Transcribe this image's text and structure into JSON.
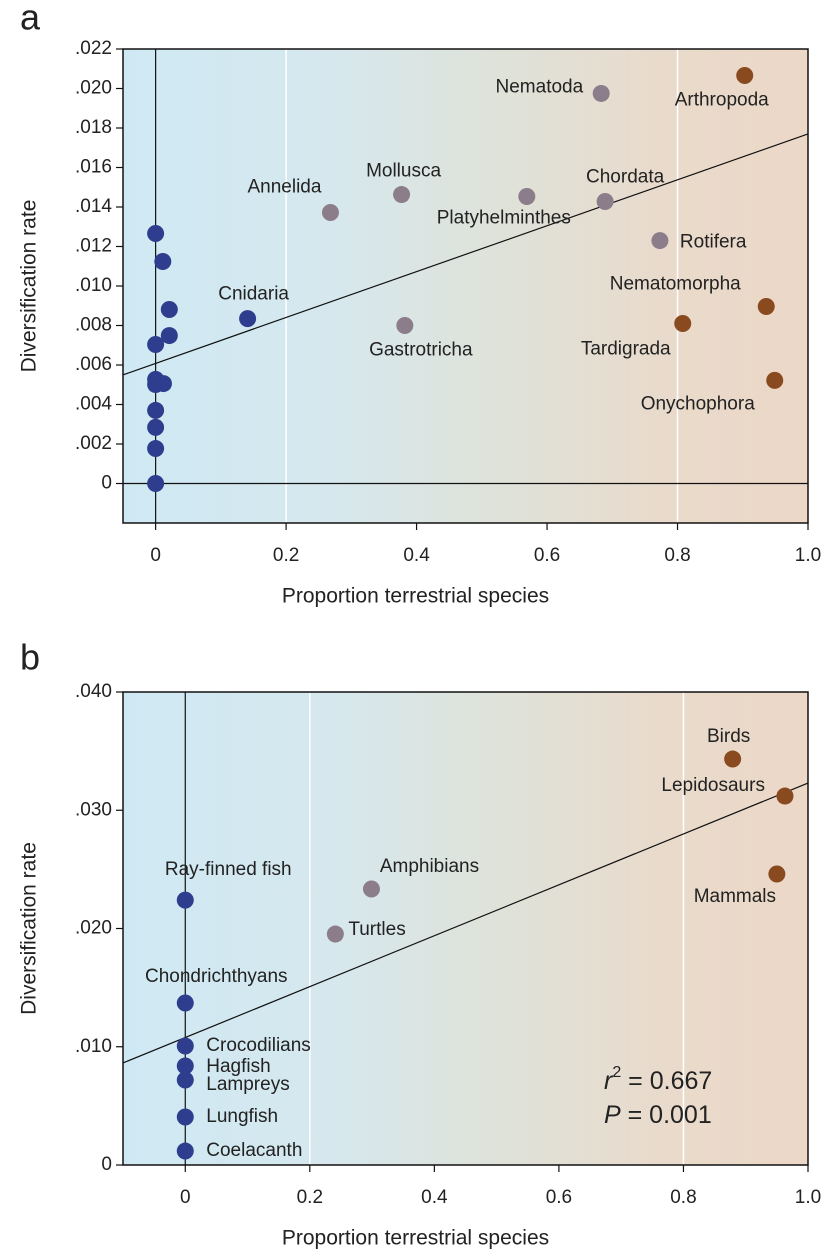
{
  "chart_data": [
    {
      "type": "scatter",
      "panel_label": "a",
      "x_label": "Proportion terrestrial species",
      "y_label": "Diversification rate",
      "xlim": [
        -0.05,
        1.0
      ],
      "ylim": [
        -0.002,
        0.022
      ],
      "xticks": [
        0,
        0.2,
        0.4,
        0.6,
        0.8,
        {
          "value": 1.0,
          "label": "1.0"
        }
      ],
      "yticks": [
        0,
        {
          "value": 0.002,
          "label": ".002"
        },
        {
          "value": 0.004,
          "label": ".004"
        },
        {
          "value": 0.006,
          "label": ".006"
        },
        {
          "value": 0.008,
          "label": ".008"
        },
        {
          "value": 0.01,
          "label": ".010"
        },
        {
          "value": 0.012,
          "label": ".012"
        },
        {
          "value": 0.014,
          "label": ".014"
        },
        {
          "value": 0.016,
          "label": ".016"
        },
        {
          "value": 0.018,
          "label": ".018"
        },
        {
          "value": 0.02,
          "label": ".020"
        },
        {
          "value": 0.022,
          "label": ".022"
        }
      ],
      "guide_lines": [
        0.2,
        0.8
      ],
      "series": [
        {
          "color": "#2f3d8e",
          "x": [
            0,
            0.011,
            0.021,
            0.021,
            0,
            0,
            0,
            0.012,
            0,
            0,
            0,
            0,
            0.141
          ],
          "values": [
            0.01266,
            0.01124,
            0.00881,
            0.00749,
            0.00704,
            0.00527,
            0.00501,
            0.00506,
            0.0037,
            0.00284,
            0.00177,
            0,
            0.00835
          ],
          "labels": [
            null,
            null,
            null,
            null,
            null,
            null,
            null,
            null,
            null,
            null,
            null,
            null,
            "Cnidaria"
          ]
        },
        {
          "color": "#8c7d8a",
          "x": [
            0.268,
            0.377,
            0.569,
            0.689,
            0.683,
            0.773,
            0.382
          ],
          "values": [
            0.01372,
            0.01463,
            0.01453,
            0.01428,
            0.01975,
            0.0123,
            0.008
          ],
          "labels": [
            "Annelida",
            "Mollusca",
            "Platyhelminthes",
            "Chordata",
            "Nematoda",
            "Rotifera",
            "Gastrotricha"
          ]
        },
        {
          "color": "#8a4a1f",
          "x": [
            0.903,
            0.936,
            0.808,
            0.949
          ],
          "values": [
            0.02066,
            0.00896,
            0.0081,
            0.00522
          ],
          "labels": [
            "Arthropoda",
            "Nematomorpha",
            "Tardigrada",
            "Onychophora"
          ]
        }
      ],
      "trendline": {
        "x": [
          -0.05,
          1.0
        ],
        "y": [
          0.0055,
          0.0177
        ]
      }
    },
    {
      "type": "scatter",
      "panel_label": "b",
      "x_label": "Proportion terrestrial species",
      "y_label": "Diversification rate",
      "xlim": [
        -0.1,
        1.0
      ],
      "ylim": [
        0,
        0.04
      ],
      "xticks": [
        0,
        0.2,
        0.4,
        0.6,
        0.8,
        {
          "value": 1.0,
          "label": "1.0"
        }
      ],
      "yticks": [
        0,
        {
          "value": 0.01,
          "label": ".010"
        },
        {
          "value": 0.02,
          "label": ".020"
        },
        {
          "value": 0.03,
          "label": ".030"
        },
        {
          "value": 0.04,
          "label": ".040"
        }
      ],
      "guide_lines": [
        0.2,
        0.8
      ],
      "series": [
        {
          "color": "#2f3d8e",
          "x": [
            0,
            0,
            0,
            0,
            0,
            0,
            0
          ],
          "values": [
            0.0224,
            0.0137,
            0.01006,
            0.00837,
            0.00719,
            0.00406,
            0.00118
          ],
          "labels": [
            "Ray-finned fish",
            "Chondrichthyans",
            "Crocodilians",
            "Hagfish",
            "Lampreys",
            "Lungfish",
            "Coelacanth"
          ]
        },
        {
          "color": "#8c7d8a",
          "x": [
            0.241,
            0.299
          ],
          "values": [
            0.01953,
            0.02334
          ],
          "labels": [
            "Turtles",
            "Amphibians"
          ]
        },
        {
          "color": "#8a4a1f",
          "x": [
            0.879,
            0.963,
            0.95
          ],
          "values": [
            0.03433,
            0.0312,
            0.02461
          ],
          "labels": [
            "Birds",
            "Lepidosaurs",
            "Mammals"
          ]
        }
      ],
      "trendline": {
        "x": [
          -0.1,
          1.0
        ],
        "y": [
          0.00863,
          0.0323
        ]
      },
      "annotation": {
        "r_symbol": "r",
        "exponent": "2",
        "r_text": " = 0.667",
        "p_symbol": "P",
        "p_text": " = 0.001"
      }
    }
  ]
}
